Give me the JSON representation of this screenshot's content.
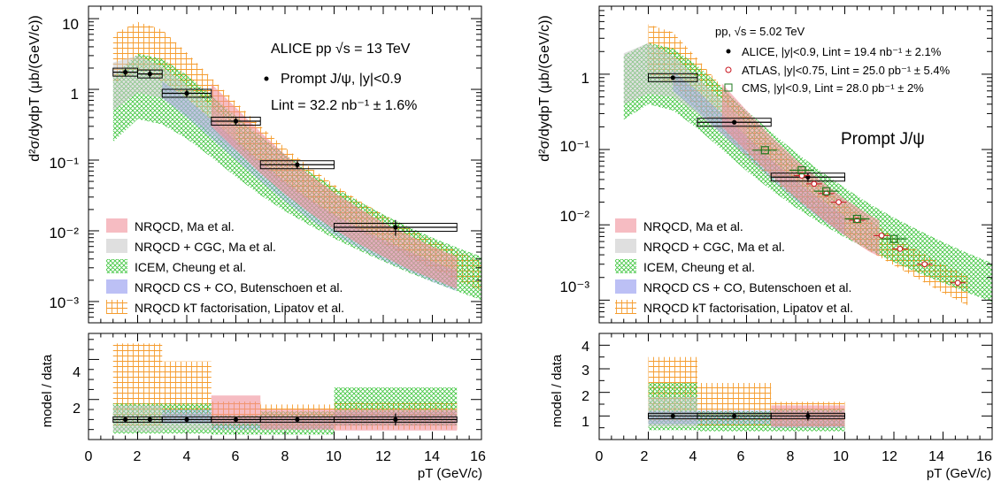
{
  "colors": {
    "nrqcd_ma": "#f0909a",
    "nrqcd_cgc": "#c9c9c9",
    "icem": "#3cc43c",
    "nrqcd_cs_co": "#8f96ee",
    "kt": "#f59c2e",
    "atlas": "#c8141e",
    "cms": "#1f7a1f"
  },
  "chart_data": [
    {
      "type": "line",
      "panel": "left-top",
      "xlim": [
        0,
        16
      ],
      "ylim": [
        0.0005,
        15
      ],
      "yscale": "log",
      "ylabel": "d²σ/dydpT (μb/(GeV/c))",
      "ytick_labels": [
        "10",
        "1",
        "10⁻¹",
        "10⁻²",
        "10⁻³"
      ],
      "texts": {
        "system": "ALICE pp √s = 13 TeV",
        "series": "Prompt J/ψ, |y|<0.9",
        "lumi": "Lint = 32.2 nb⁻¹ ± 1.6%"
      },
      "legend": [
        {
          "key": "nrqcd_ma",
          "label": "NRQCD, Ma et al."
        },
        {
          "key": "nrqcd_cgc",
          "label": "NRQCD + CGC, Ma et al."
        },
        {
          "key": "icem",
          "label": "ICEM, Cheung et al."
        },
        {
          "key": "nrqcd_cs_co",
          "label": "NRQCD CS + CO, Butenschoen et al."
        },
        {
          "key": "kt",
          "label": "NRQCD kT factorisation, Lipatov et al."
        }
      ],
      "data": [
        {
          "x": 1.5,
          "xlo": 1,
          "xhi": 2,
          "y": 1.75,
          "ylo": 1.55,
          "yhi": 1.95
        },
        {
          "x": 2.5,
          "xlo": 2,
          "xhi": 3,
          "y": 1.65,
          "ylo": 1.45,
          "yhi": 1.85
        },
        {
          "x": 4.0,
          "xlo": 3,
          "xhi": 5,
          "y": 0.88,
          "ylo": 0.78,
          "yhi": 0.98
        },
        {
          "x": 6.0,
          "xlo": 5,
          "xhi": 7,
          "y": 0.355,
          "ylo": 0.315,
          "yhi": 0.395
        },
        {
          "x": 8.5,
          "xlo": 7,
          "xhi": 10,
          "y": 0.086,
          "ylo": 0.076,
          "yhi": 0.096
        },
        {
          "x": 12.5,
          "xlo": 10,
          "xhi": 15,
          "y": 0.0112,
          "ylo": 0.0085,
          "yhi": 0.0142
        }
      ],
      "bands": {
        "kt": {
          "x": [
            1,
            2,
            3,
            4,
            5,
            6,
            7,
            8,
            9,
            10,
            11,
            12,
            13,
            14,
            15,
            16
          ],
          "lo": [
            1.2,
            1.8,
            1.3,
            0.75,
            0.36,
            0.17,
            0.085,
            0.045,
            0.026,
            0.016,
            0.01,
            0.0065,
            0.0043,
            0.0029,
            0.002,
            0.0014
          ],
          "hi": [
            6.0,
            9.0,
            7.0,
            3.3,
            1.45,
            0.66,
            0.3,
            0.15,
            0.08,
            0.045,
            0.027,
            0.017,
            0.011,
            0.0075,
            0.0052,
            0.0037
          ]
        },
        "icem": {
          "x": [
            1,
            2,
            3,
            4,
            5,
            6,
            7,
            8,
            9,
            10,
            11,
            12,
            13,
            14,
            15,
            16
          ],
          "lo": [
            0.18,
            0.38,
            0.32,
            0.2,
            0.11,
            0.058,
            0.032,
            0.019,
            0.012,
            0.0078,
            0.0053,
            0.0037,
            0.0026,
            0.0019,
            0.0014,
            0.00105
          ],
          "hi": [
            1.5,
            3.2,
            2.7,
            1.6,
            0.82,
            0.42,
            0.22,
            0.12,
            0.068,
            0.041,
            0.026,
            0.017,
            0.0115,
            0.008,
            0.0058,
            0.0043
          ]
        },
        "nrqcd_cgc": {
          "x": [
            1,
            2,
            3,
            4,
            5,
            6
          ],
          "lo": [
            0.5,
            0.9,
            0.75,
            0.44,
            0.24,
            0.13
          ],
          "hi": [
            2.4,
            3.0,
            2.1,
            1.15,
            0.58,
            0.29
          ]
        },
        "nrqcd_ma": {
          "x": [
            5,
            6,
            7,
            8,
            9,
            10,
            11,
            12,
            13,
            14,
            15
          ],
          "lo": [
            0.3,
            0.14,
            0.065,
            0.033,
            0.018,
            0.0105,
            0.0065,
            0.0043,
            0.0029,
            0.0021,
            0.0015
          ],
          "hi": [
            1.2,
            0.55,
            0.25,
            0.12,
            0.062,
            0.035,
            0.021,
            0.013,
            0.0088,
            0.006,
            0.0043
          ]
        },
        "nrqcd_cs_co": {
          "x": [
            3,
            4,
            5,
            6,
            7,
            8,
            9,
            10,
            11,
            12,
            13,
            14,
            15
          ],
          "lo": [
            0.75,
            0.4,
            0.2,
            0.1,
            0.05,
            0.026,
            0.0145,
            0.0088,
            0.0057,
            0.0038,
            0.0027,
            0.0019,
            0.0014
          ],
          "hi": [
            1.3,
            0.75,
            0.38,
            0.19,
            0.095,
            0.05,
            0.028,
            0.017,
            0.011,
            0.0075,
            0.0052,
            0.0037,
            0.0027
          ]
        }
      }
    },
    {
      "type": "bar",
      "panel": "left-bottom",
      "xlim": [
        0,
        16
      ],
      "ylim": [
        0,
        5.3
      ],
      "xlabel": "pT (GeV/c)",
      "ylabel": "model / data",
      "xtick_labels": [
        "0",
        "2",
        "4",
        "6",
        "8",
        "10",
        "12",
        "14",
        "16"
      ],
      "ytick_labels": [
        "2",
        "4"
      ],
      "data": [
        {
          "x": 1.5,
          "xlo": 1,
          "xhi": 2,
          "y": 1.0,
          "ylo": 0.9,
          "yhi": 1.1
        },
        {
          "x": 2.5,
          "xlo": 2,
          "xhi": 3,
          "y": 1.0,
          "ylo": 0.9,
          "yhi": 1.1
        },
        {
          "x": 4.0,
          "xlo": 3,
          "xhi": 5,
          "y": 1.0,
          "ylo": 0.9,
          "yhi": 1.1
        },
        {
          "x": 6.0,
          "xlo": 5,
          "xhi": 7,
          "y": 1.0,
          "ylo": 0.9,
          "yhi": 1.1
        },
        {
          "x": 8.5,
          "xlo": 7,
          "xhi": 10,
          "y": 1.0,
          "ylo": 0.9,
          "yhi": 1.1
        },
        {
          "x": 12.5,
          "xlo": 10,
          "xhi": 15,
          "y": 1.0,
          "ylo": 0.7,
          "yhi": 1.3
        }
      ],
      "bands": {
        "kt": [
          {
            "xlo": 1,
            "xhi": 3,
            "lo": 0.7,
            "hi": 4.8
          },
          {
            "xlo": 3,
            "xhi": 5,
            "lo": 0.8,
            "hi": 3.9
          },
          {
            "xlo": 5,
            "xhi": 7,
            "lo": 0.5,
            "hi": 1.9
          },
          {
            "xlo": 7,
            "xhi": 10,
            "lo": 0.5,
            "hi": 1.75
          },
          {
            "xlo": 10,
            "xhi": 15,
            "lo": 0.5,
            "hi": 1.85
          }
        ],
        "icem": [
          {
            "xlo": 1,
            "xhi": 3,
            "lo": 0.3,
            "hi": 1.8
          },
          {
            "xlo": 3,
            "xhi": 5,
            "lo": 0.3,
            "hi": 1.8
          },
          {
            "xlo": 5,
            "xhi": 7,
            "lo": 0.25,
            "hi": 1.2
          },
          {
            "xlo": 7,
            "xhi": 10,
            "lo": 0.25,
            "hi": 1.4
          },
          {
            "xlo": 10,
            "xhi": 15,
            "lo": 0.7,
            "hi": 2.6
          }
        ],
        "nrqcd_cgc": [
          {
            "xlo": 1,
            "xhi": 3,
            "lo": 0.4,
            "hi": 1.7
          },
          {
            "xlo": 3,
            "xhi": 5,
            "lo": 0.5,
            "hi": 1.3
          }
        ],
        "nrqcd_cs_co": [
          {
            "xlo": 3,
            "xhi": 5,
            "lo": 0.8,
            "hi": 1.5
          },
          {
            "xlo": 5,
            "xhi": 7,
            "lo": 0.5,
            "hi": 1.1
          },
          {
            "xlo": 7,
            "xhi": 10,
            "lo": 0.5,
            "hi": 1.1
          },
          {
            "xlo": 10,
            "xhi": 15,
            "lo": 0.7,
            "hi": 1.4
          }
        ],
        "nrqcd_ma": [
          {
            "xlo": 5,
            "xhi": 7,
            "lo": 0.8,
            "hi": 2.2
          },
          {
            "xlo": 7,
            "xhi": 10,
            "lo": 0.5,
            "hi": 1.5
          },
          {
            "xlo": 10,
            "xhi": 15,
            "lo": 0.45,
            "hi": 1.5
          }
        ]
      }
    },
    {
      "type": "line",
      "panel": "right-top",
      "xlim": [
        0,
        16
      ],
      "ylim": [
        0.0005,
        8
      ],
      "yscale": "log",
      "ylabel": "d²σ/dydpT (μb/(GeV/c))",
      "ytick_labels": [
        "1",
        "10⁻¹",
        "10⁻²",
        "10⁻³"
      ],
      "texts": {
        "system": "pp, √s = 5.02 TeV",
        "title": "Prompt J/ψ"
      },
      "legend_points": [
        {
          "key": "alice",
          "label": "ALICE, |y|<0.9, Lint = 19.4 nb⁻¹ ± 2.1%"
        },
        {
          "key": "atlas",
          "label": "ATLAS, |y|<0.75, Lint = 25.0 pb⁻¹ ± 5.4%"
        },
        {
          "key": "cms",
          "label": "CMS, |y|<0.9, Lint = 28.0 pb⁻¹ ± 2%"
        }
      ],
      "legend": [
        {
          "key": "nrqcd_ma",
          "label": "NRQCD, Ma et al."
        },
        {
          "key": "nrqcd_cgc",
          "label": "NRQCD + CGC, Ma et al."
        },
        {
          "key": "icem",
          "label": "ICEM, Cheung et al."
        },
        {
          "key": "nrqcd_cs_co",
          "label": "NRQCD CS + CO, Butenschoen et al."
        },
        {
          "key": "kt",
          "label": "NRQCD kT factorisation, Lipatov et al."
        }
      ],
      "alice": [
        {
          "x": 3.0,
          "xlo": 2,
          "xhi": 4,
          "y": 0.9,
          "ylo": 0.84,
          "yhi": 0.96
        },
        {
          "x": 5.5,
          "xlo": 4,
          "xhi": 7,
          "y": 0.23,
          "ylo": 0.215,
          "yhi": 0.245
        },
        {
          "x": 8.5,
          "xlo": 7,
          "xhi": 10,
          "y": 0.043,
          "ylo": 0.037,
          "yhi": 0.049
        }
      ],
      "atlas": [
        {
          "x": 8.25,
          "y": 0.045
        },
        {
          "x": 8.75,
          "y": 0.035
        },
        {
          "x": 9.25,
          "y": 0.026
        },
        {
          "x": 9.75,
          "y": 0.02
        },
        {
          "x": 10.5,
          "y": 0.0115
        },
        {
          "x": 11.5,
          "y": 0.0072
        },
        {
          "x": 12.25,
          "y": 0.0048
        },
        {
          "x": 13.25,
          "y": 0.003
        },
        {
          "x": 14.6,
          "y": 0.0017
        }
      ],
      "cms": [
        {
          "x": 6.75,
          "y": 0.098
        },
        {
          "x": 8.25,
          "y": 0.053
        },
        {
          "x": 9.25,
          "y": 0.028
        },
        {
          "x": 10.5,
          "y": 0.012
        },
        {
          "x": 12.0,
          "y": 0.0065
        }
      ],
      "bands": {
        "kt": {
          "x": [
            2,
            3,
            4,
            5,
            6,
            7,
            8,
            9,
            10,
            11,
            12,
            13,
            14,
            15
          ],
          "lo": [
            1.0,
            0.72,
            0.36,
            0.17,
            0.08,
            0.04,
            0.022,
            0.0125,
            0.0075,
            0.0045,
            0.0029,
            0.0019,
            0.00125,
            0.00085
          ],
          "hi": [
            4.6,
            3.6,
            1.6,
            0.68,
            0.29,
            0.13,
            0.064,
            0.034,
            0.019,
            0.0112,
            0.0069,
            0.0045,
            0.003,
            0.0021
          ]
        },
        "icem": {
          "x": [
            1,
            2,
            3,
            4,
            5,
            6,
            7,
            8,
            9,
            10,
            11,
            12,
            13,
            14,
            15,
            16
          ],
          "lo": [
            0.25,
            0.4,
            0.33,
            0.19,
            0.1,
            0.052,
            0.029,
            0.017,
            0.0105,
            0.0068,
            0.0046,
            0.0032,
            0.0023,
            0.0017,
            0.00125,
            0.00095
          ],
          "hi": [
            1.8,
            2.6,
            2.2,
            1.3,
            0.66,
            0.33,
            0.17,
            0.092,
            0.052,
            0.031,
            0.019,
            0.0125,
            0.0085,
            0.0059,
            0.0042,
            0.0031
          ]
        },
        "nrqcd_cgc": {
          "x": [
            1,
            2,
            3,
            4,
            5,
            6
          ],
          "lo": [
            0.4,
            0.55,
            0.5,
            0.3,
            0.16,
            0.085
          ],
          "hi": [
            1.9,
            2.6,
            1.75,
            0.9,
            0.45,
            0.22
          ]
        },
        "nrqcd_ma": {
          "x": [
            5,
            6,
            7,
            8,
            9,
            10,
            11,
            11.4
          ],
          "lo": [
            0.2,
            0.095,
            0.045,
            0.023,
            0.0125,
            0.0072,
            0.0044,
            0.0038
          ],
          "hi": [
            0.75,
            0.33,
            0.15,
            0.074,
            0.039,
            0.022,
            0.0135,
            0.0115
          ]
        },
        "nrqcd_cs_co": {
          "x": [
            3,
            4,
            5,
            6,
            7,
            8,
            9,
            10
          ],
          "lo": [
            0.6,
            0.32,
            0.16,
            0.08,
            0.04,
            0.021,
            0.012,
            0.0072
          ],
          "hi": [
            1.1,
            0.6,
            0.3,
            0.15,
            0.074,
            0.039,
            0.022,
            0.013
          ]
        }
      }
    },
    {
      "type": "bar",
      "panel": "right-bottom",
      "xlim": [
        0,
        16
      ],
      "ylim": [
        0,
        4.5
      ],
      "xlabel": "pT (GeV/c)",
      "ylabel": "model / data",
      "xtick_labels": [
        "0",
        "2",
        "4",
        "6",
        "8",
        "10",
        "12",
        "14",
        "16"
      ],
      "ytick_labels": [
        "1",
        "2",
        "3",
        "4"
      ],
      "data": [
        {
          "x": 3.0,
          "xlo": 2,
          "xhi": 4,
          "y": 1.0,
          "ylo": 0.93,
          "yhi": 1.07
        },
        {
          "x": 5.5,
          "xlo": 4,
          "xhi": 7,
          "y": 1.0,
          "ylo": 0.93,
          "yhi": 1.07
        },
        {
          "x": 8.5,
          "xlo": 7,
          "xhi": 10,
          "y": 1.0,
          "ylo": 0.8,
          "yhi": 1.2
        }
      ],
      "bands": {
        "kt": [
          {
            "xlo": 2,
            "xhi": 4,
            "lo": 0.75,
            "hi": 3.5
          },
          {
            "xlo": 4,
            "xhi": 7,
            "lo": 0.6,
            "hi": 2.4
          },
          {
            "xlo": 7,
            "xhi": 10,
            "lo": 0.5,
            "hi": 1.6
          }
        ],
        "icem": [
          {
            "xlo": 2,
            "xhi": 4,
            "lo": 0.4,
            "hi": 2.4
          },
          {
            "xlo": 4,
            "xhi": 7,
            "lo": 0.35,
            "hi": 1.2
          },
          {
            "xlo": 7,
            "xhi": 10,
            "lo": 0.35,
            "hi": 1.3
          }
        ],
        "nrqcd_cgc": [
          {
            "xlo": 2,
            "xhi": 4,
            "lo": 0.55,
            "hi": 1.8
          }
        ],
        "nrqcd_cs_co": [
          {
            "xlo": 2,
            "xhi": 4,
            "lo": 0.65,
            "hi": 1.2
          },
          {
            "xlo": 4,
            "xhi": 7,
            "lo": 0.65,
            "hi": 1.25
          },
          {
            "xlo": 7,
            "xhi": 10,
            "lo": 0.5,
            "hi": 1.2
          }
        ],
        "nrqcd_ma": [
          {
            "xlo": 7,
            "xhi": 10,
            "lo": 0.55,
            "hi": 1.45
          }
        ]
      }
    }
  ]
}
